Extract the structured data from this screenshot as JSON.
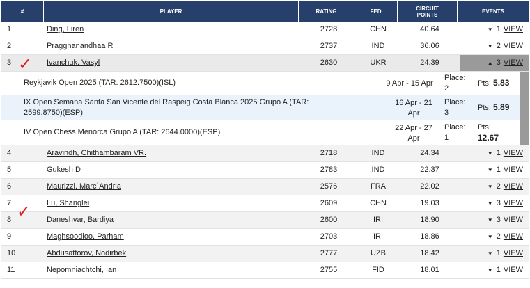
{
  "headers": {
    "rank": "#",
    "player": "PLAYER",
    "rating": "RATING",
    "fed": "FED",
    "circuit_points": "CIRCUIT POINTS",
    "events": "EVENTS"
  },
  "rows": [
    {
      "rank": "1",
      "player": "Ding, Liren",
      "rating": "2728",
      "fed": "CHN",
      "points": "40.64",
      "events": "1",
      "view": "VIEW"
    },
    {
      "rank": "2",
      "player": "Praggnanandhaa R",
      "rating": "2737",
      "fed": "IND",
      "points": "36.06",
      "events": "2",
      "view": "VIEW"
    },
    {
      "rank": "3",
      "player": "Ivanchuk, Vasyl",
      "rating": "2630",
      "fed": "UKR",
      "points": "24.39",
      "events": "3",
      "view": "VIEW"
    },
    {
      "rank": "4",
      "player": "Aravindh, Chithambaram VR.",
      "rating": "2718",
      "fed": "IND",
      "points": "24.34",
      "events": "1",
      "view": "VIEW"
    },
    {
      "rank": "5",
      "player": "Gukesh D",
      "rating": "2783",
      "fed": "IND",
      "points": "22.37",
      "events": "1",
      "view": "VIEW"
    },
    {
      "rank": "6",
      "player": "Maurizzi, Marc`Andria",
      "rating": "2576",
      "fed": "FRA",
      "points": "22.02",
      "events": "2",
      "view": "VIEW"
    },
    {
      "rank": "7",
      "player": "Lu, Shanglei",
      "rating": "2609",
      "fed": "CHN",
      "points": "19.03",
      "events": "3",
      "view": "VIEW"
    },
    {
      "rank": "8",
      "player": "Daneshvar, Bardiya",
      "rating": "2600",
      "fed": "IRI",
      "points": "18.90",
      "events": "3",
      "view": "VIEW"
    },
    {
      "rank": "9",
      "player": "Maghsoodloo, Parham",
      "rating": "2703",
      "fed": "IRI",
      "points": "18.86",
      "events": "2",
      "view": "VIEW"
    },
    {
      "rank": "10",
      "player": "Abdusattorov, Nodirbek",
      "rating": "2777",
      "fed": "UZB",
      "points": "18.42",
      "events": "1",
      "view": "VIEW"
    },
    {
      "rank": "11",
      "player": "Nepomniachtchi, Ian",
      "rating": "2755",
      "fed": "FID",
      "points": "18.01",
      "events": "1",
      "view": "VIEW"
    }
  ],
  "expanded_events": [
    {
      "line1": "Reykjavik Open 2025 (TAR: 2612.7500)(ISL)",
      "line2": "",
      "date1": "9 Apr - 15 Apr",
      "date2": "",
      "place_label": "Place:",
      "place": "2",
      "pts_label": "Pts:",
      "pts": "5.83"
    },
    {
      "line1": "IX Open Semana Santa San Vicente del Raspeig Costa Blanca 2025 Grupo A (TAR:",
      "line2": "2599.8750)(ESP)",
      "date1": "16 Apr - 21",
      "date2": "Apr",
      "place_label": "Place:",
      "place": "3",
      "pts_label": "Pts:",
      "pts": "5.89"
    },
    {
      "line1": "IV Open Chess Menorca Grupo A (TAR: 2644.0000)(ESP)",
      "line2": "",
      "date1": "22 Apr - 27",
      "date2": "Apr",
      "place_label": "Place:",
      "place": "1",
      "pts_label": "Pts:",
      "pts": "12.67"
    }
  ],
  "icons": {
    "collapsed": "chevron-down-icon",
    "expanded": "chevron-up-icon"
  },
  "colors": {
    "header_bg": "#27406b",
    "annotation": "#e01a1a",
    "selected_events_bg": "#9a9a9a"
  }
}
